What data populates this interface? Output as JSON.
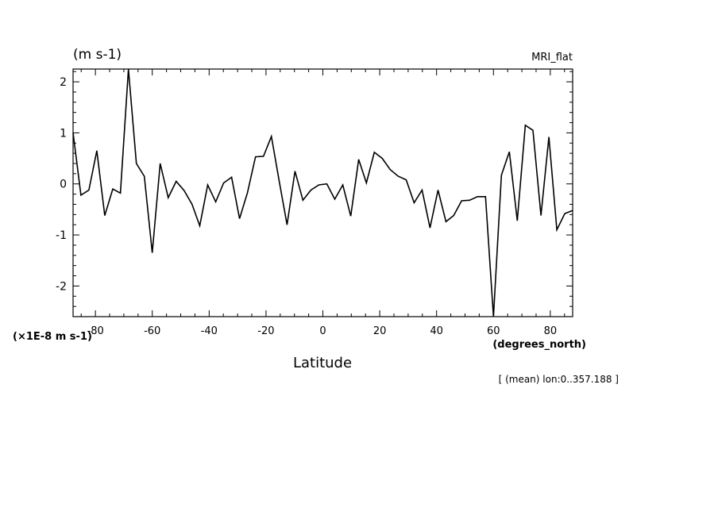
{
  "chart_data": {
    "type": "line",
    "title": "",
    "unit_label": "(m s-1)",
    "model_label": "MRI_flat",
    "scale_label": "(×1E-8 m s-1)",
    "xlabel": "Latitude",
    "xunit_label": "(degrees_north)",
    "subtitle": "[ (mean) lon:0..357.188 ]",
    "xlim": [
      -87.86,
      87.86
    ],
    "ylim": [
      -2.6,
      2.25
    ],
    "x_ticks": [
      -80,
      -60,
      -40,
      -20,
      0,
      20,
      40,
      60,
      80
    ],
    "x_tick_labels": [
      "-80",
      "-60",
      "-40",
      "-20",
      "0",
      "20",
      "40",
      "60",
      "80"
    ],
    "y_ticks": [
      -2,
      -1,
      0,
      1,
      2
    ],
    "y_tick_labels": [
      "-2",
      "-1",
      "0",
      "1",
      "2"
    ],
    "grid": false,
    "series": [
      {
        "x": [
          -87.86,
          -85.1,
          -82.3,
          -79.5,
          -76.7,
          -73.9,
          -71.2,
          -68.4,
          -65.6,
          -62.8,
          -60.0,
          -57.2,
          -54.4,
          -51.6,
          -48.8,
          -46.0,
          -43.3,
          -40.5,
          -37.7,
          -34.9,
          -32.1,
          -29.3,
          -26.5,
          -23.7,
          -20.9,
          -18.1,
          -15.3,
          -12.6,
          -9.8,
          -7.0,
          -4.2,
          -1.4,
          1.4,
          4.2,
          7.0,
          9.8,
          12.6,
          15.3,
          18.1,
          20.9,
          23.7,
          26.5,
          29.3,
          32.1,
          34.9,
          37.7,
          40.5,
          43.3,
          46.0,
          48.8,
          51.6,
          54.4,
          57.2,
          60.0,
          62.8,
          65.6,
          68.4,
          71.2,
          73.9,
          76.7,
          79.5,
          82.3,
          85.1,
          87.86
        ],
        "y": [
          1.0,
          -0.22,
          -0.12,
          0.65,
          -0.62,
          -0.1,
          -0.18,
          2.25,
          0.4,
          0.15,
          -1.35,
          0.4,
          -0.27,
          0.05,
          -0.13,
          -0.4,
          -0.82,
          -0.02,
          -0.35,
          0.02,
          0.13,
          -0.68,
          -0.17,
          0.53,
          0.54,
          0.93,
          0.04,
          -0.8,
          0.25,
          -0.32,
          -0.12,
          -0.02,
          0.0,
          -0.3,
          -0.02,
          -0.63,
          0.48,
          0.02,
          0.62,
          0.5,
          0.28,
          0.15,
          0.08,
          -0.37,
          -0.12,
          -0.86,
          -0.12,
          -0.74,
          -0.62,
          -0.33,
          -0.32,
          -0.25,
          -0.25,
          -2.6,
          0.17,
          0.63,
          -0.72,
          1.15,
          1.05,
          -0.62,
          0.92,
          -0.9,
          -0.58,
          -0.52
        ]
      }
    ]
  }
}
